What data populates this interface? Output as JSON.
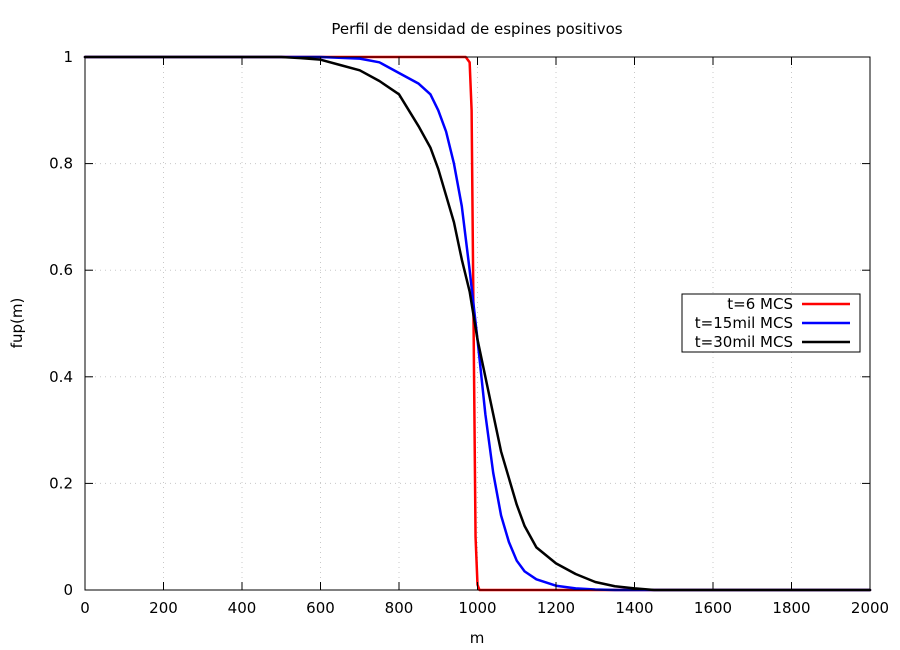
{
  "chart_data": {
    "type": "line",
    "title": "Perfil de densidad de espines positivos",
    "xlabel": "m",
    "ylabel": "fup(m)",
    "xlim": [
      0,
      2000
    ],
    "ylim": [
      0,
      1
    ],
    "x_ticks": [
      "0",
      "200",
      "400",
      "600",
      "800",
      "1000",
      "1200",
      "1400",
      "1600",
      "1800",
      "2000"
    ],
    "y_ticks": [
      "0",
      "0.2",
      "0.4",
      "0.6",
      "0.8",
      "1"
    ],
    "grid": true,
    "legend_position": "right",
    "series": [
      {
        "name": "t=6 MCS",
        "color": "#ff0000",
        "x": [
          0,
          970,
          980,
          985,
          990,
          995,
          1000,
          1005,
          1010,
          1020,
          2000
        ],
        "y": [
          1,
          1,
          0.99,
          0.9,
          0.5,
          0.1,
          0.01,
          0,
          0,
          0,
          0
        ]
      },
      {
        "name": "t=15mil MCS",
        "color": "#0000ff",
        "x": [
          0,
          600,
          700,
          750,
          800,
          850,
          880,
          900,
          920,
          940,
          960,
          980,
          1000,
          1020,
          1040,
          1060,
          1080,
          1100,
          1120,
          1150,
          1200,
          1250,
          1300,
          1350,
          1400,
          2000
        ],
        "y": [
          1,
          1,
          0.997,
          0.99,
          0.97,
          0.95,
          0.93,
          0.9,
          0.86,
          0.8,
          0.72,
          0.6,
          0.47,
          0.33,
          0.22,
          0.14,
          0.09,
          0.055,
          0.035,
          0.02,
          0.008,
          0.003,
          0.001,
          0,
          0,
          0
        ]
      },
      {
        "name": "t=30mil MCS",
        "color": "#000000",
        "x": [
          0,
          500,
          550,
          600,
          650,
          700,
          750,
          800,
          850,
          880,
          900,
          920,
          940,
          960,
          980,
          1000,
          1020,
          1040,
          1060,
          1080,
          1100,
          1120,
          1150,
          1200,
          1250,
          1300,
          1350,
          1400,
          1450,
          2000
        ],
        "y": [
          1,
          1,
          0.998,
          0.995,
          0.985,
          0.975,
          0.955,
          0.93,
          0.87,
          0.83,
          0.79,
          0.74,
          0.69,
          0.62,
          0.56,
          0.47,
          0.4,
          0.33,
          0.26,
          0.21,
          0.16,
          0.12,
          0.08,
          0.05,
          0.03,
          0.015,
          0.007,
          0.003,
          0,
          0
        ]
      }
    ]
  }
}
